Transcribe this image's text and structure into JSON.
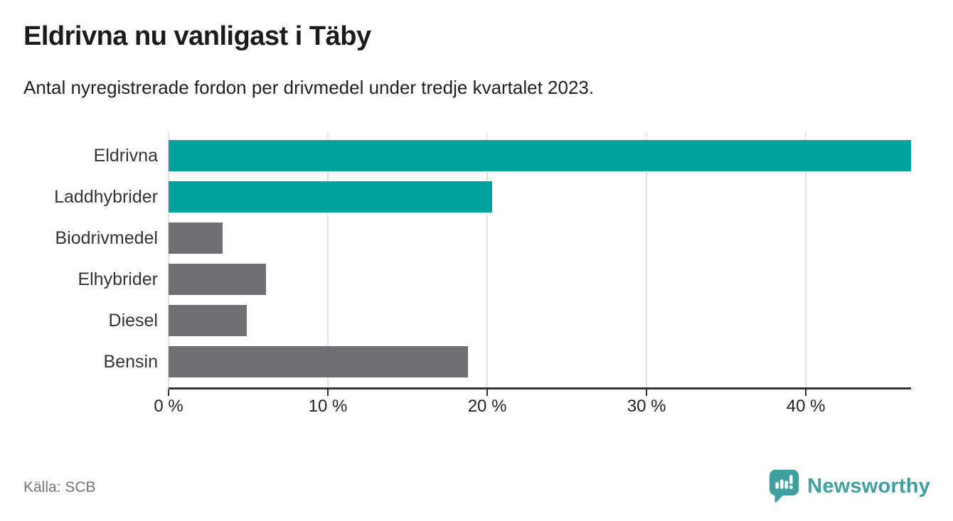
{
  "header": {
    "title": "Eldrivna nu vanligast i Täby",
    "subtitle": "Antal nyregistrerade fordon per drivmedel under tredje kvartalet 2023."
  },
  "footer": {
    "source": "Källa: SCB",
    "brand": "Newsworthy"
  },
  "colors": {
    "highlight": "#00a39b",
    "default_bar": "#6e6e73",
    "axis": "#333333",
    "grid": "#e4e4e4",
    "brand_teal": "#3fa09e"
  },
  "chart_data": {
    "type": "bar",
    "orientation": "horizontal",
    "title": "Eldrivna nu vanligast i Täby",
    "subtitle": "Antal nyregistrerade fordon per drivmedel under tredje kvartalet 2023.",
    "categories": [
      "Eldrivna",
      "Laddhybrider",
      "Biodrivmedel",
      "Elhybrider",
      "Diesel",
      "Bensin"
    ],
    "values": [
      46.6,
      20.3,
      3.4,
      6.1,
      4.9,
      18.8
    ],
    "unit": "%",
    "bar_colors": [
      "#00a39b",
      "#00a39b",
      "#6e6e73",
      "#6e6e73",
      "#6e6e73",
      "#6e6e73"
    ],
    "xlim": [
      0,
      46.6
    ],
    "x_ticks": [
      {
        "value": 0,
        "label": "0 %"
      },
      {
        "value": 10,
        "label": "10 %"
      },
      {
        "value": 20,
        "label": "20 %"
      },
      {
        "value": 30,
        "label": "30 %"
      },
      {
        "value": 40,
        "label": "40 %"
      }
    ],
    "grid": true,
    "legend": false,
    "source": "Källa: SCB"
  }
}
